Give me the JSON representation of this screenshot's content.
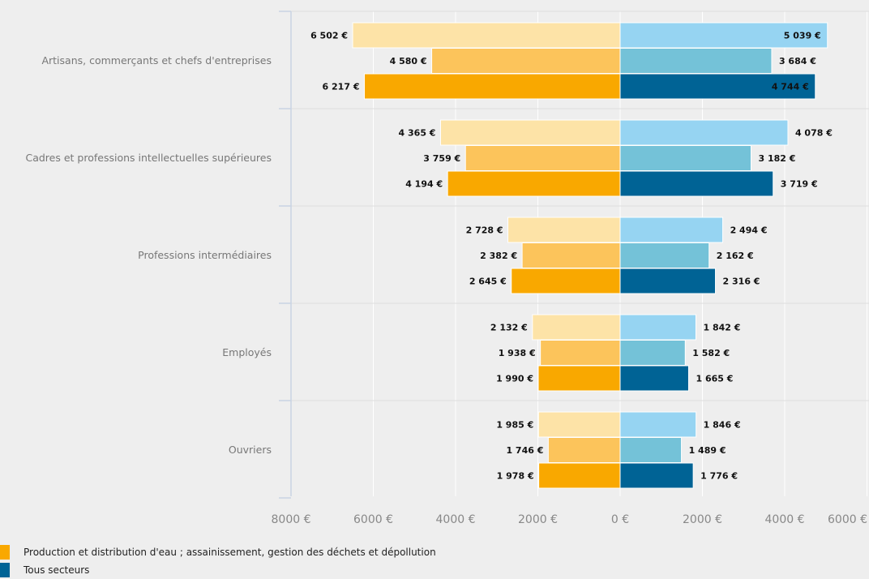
{
  "chart_data": {
    "type": "bar",
    "orientation": "horizontal-butterfly",
    "categories": [
      "Artisans, commerçants et chefs d'entreprises",
      "Cadres et professions intellectuelles supérieures",
      "Professions intermédiaires",
      "Employés",
      "Ouvriers"
    ],
    "left_side": {
      "series": [
        {
          "name": "",
          "values": [
            6502,
            4365,
            2728,
            2132,
            1985
          ],
          "labels": [
            "6 502 €",
            "4 365 €",
            "2 728 €",
            "2 132 €",
            "1 985 €"
          ],
          "color": "#fde3a7"
        },
        {
          "name": "",
          "values": [
            4580,
            3759,
            2382,
            1938,
            1746
          ],
          "labels": [
            "4 580 €",
            "3 759 €",
            "2 382 €",
            "1 938 €",
            "1 746 €"
          ],
          "color": "#fcc45b"
        },
        {
          "name": "Production et distribution d'eau ; assainissement, gestion des déchets et dépollution",
          "values": [
            6217,
            4194,
            2645,
            1990,
            1978
          ],
          "labels": [
            "6 217 €",
            "4 194 €",
            "2 645 €",
            "1 990 €",
            "1 978 €"
          ],
          "color": "#f9a800"
        }
      ]
    },
    "right_side": {
      "series": [
        {
          "name": "",
          "values": [
            5039,
            4078,
            2494,
            1842,
            1846
          ],
          "labels": [
            "5 039 €",
            "4 078 €",
            "2 494 €",
            "1 842 €",
            "1 846 €"
          ],
          "color": "#96d4f2"
        },
        {
          "name": "",
          "values": [
            3684,
            3182,
            2162,
            1582,
            1489
          ],
          "labels": [
            "3 684 €",
            "3 182 €",
            "2 162 €",
            "1 582 €",
            "1 489 €"
          ],
          "color": "#74c2d8"
        },
        {
          "name": "Tous secteurs",
          "values": [
            4744,
            3719,
            2316,
            1665,
            1776
          ],
          "labels": [
            "4 744 €",
            "3 719 €",
            "2 316 €",
            "1 665 €",
            "1 776 €"
          ],
          "color": "#006395"
        }
      ]
    },
    "x_ticks": [
      {
        "value": -8000,
        "label": "8000 €"
      },
      {
        "value": -6000,
        "label": "6000 €"
      },
      {
        "value": -4000,
        "label": "4000 €"
      },
      {
        "value": -2000,
        "label": "2000 €"
      },
      {
        "value": 0,
        "label": "0 €"
      },
      {
        "value": 2000,
        "label": "2000 €"
      },
      {
        "value": 4000,
        "label": "4000 €"
      },
      {
        "value": 6000,
        "label": "6000 €"
      }
    ],
    "xlim": [
      -8000,
      6000
    ],
    "grid": true,
    "legend_position": "bottom-left",
    "legend": [
      {
        "label": "Production et distribution d'eau ; assainissement, gestion des déchets et dépollution",
        "color": "#f9a800"
      },
      {
        "label": "Tous secteurs",
        "color": "#006395"
      }
    ]
  },
  "colors": {
    "background": "#eeeeee",
    "grid": "#ffffff",
    "axis": "#c9d3e3"
  }
}
